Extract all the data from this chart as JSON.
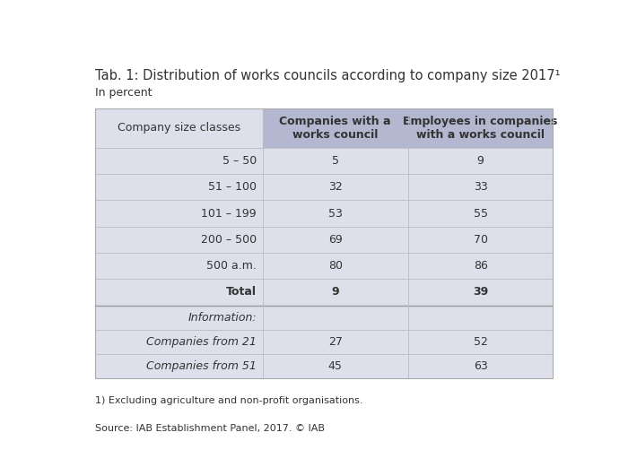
{
  "title": "Tab. 1: Distribution of works councils according to company size 2017¹",
  "subtitle": "In percent",
  "col_headers": [
    "Company size classes",
    "Companies with a\nworks council",
    "Employees in companies\nwith a works council"
  ],
  "rows": [
    {
      "label": "5 – 50",
      "col1": "5",
      "col2": "9",
      "bold": false
    },
    {
      "label": "51 – 100",
      "col1": "32",
      "col2": "33",
      "bold": false
    },
    {
      "label": "101 – 199",
      "col1": "53",
      "col2": "55",
      "bold": false
    },
    {
      "label": "200 – 500",
      "col1": "69",
      "col2": "70",
      "bold": false
    },
    {
      "label": "500 a.m.",
      "col1": "80",
      "col2": "86",
      "bold": false
    },
    {
      "label": "Total",
      "col1": "9",
      "col2": "39",
      "bold": true
    }
  ],
  "info_rows": [
    {
      "label": "Information:",
      "col1": "",
      "col2": ""
    },
    {
      "label": "Companies from 21",
      "col1": "27",
      "col2": "52"
    },
    {
      "label": "Companies from 51",
      "col1": "45",
      "col2": "63"
    }
  ],
  "footnote": "¹⦾ Excluding agriculture and non-profit organisations.",
  "footnote_display": "1) Excluding agriculture and non-profit organisations.",
  "source": "Source: IAB Establishment Panel, 2017. © IAB",
  "header_bg": "#b3b8d0",
  "row_bg": "#dde0ea",
  "table_border": "#aaaaaa",
  "divider_color": "#bbbbbb",
  "text_color": "#333333",
  "bg_color": "#ffffff",
  "col_splits": [
    0.365,
    0.683
  ]
}
